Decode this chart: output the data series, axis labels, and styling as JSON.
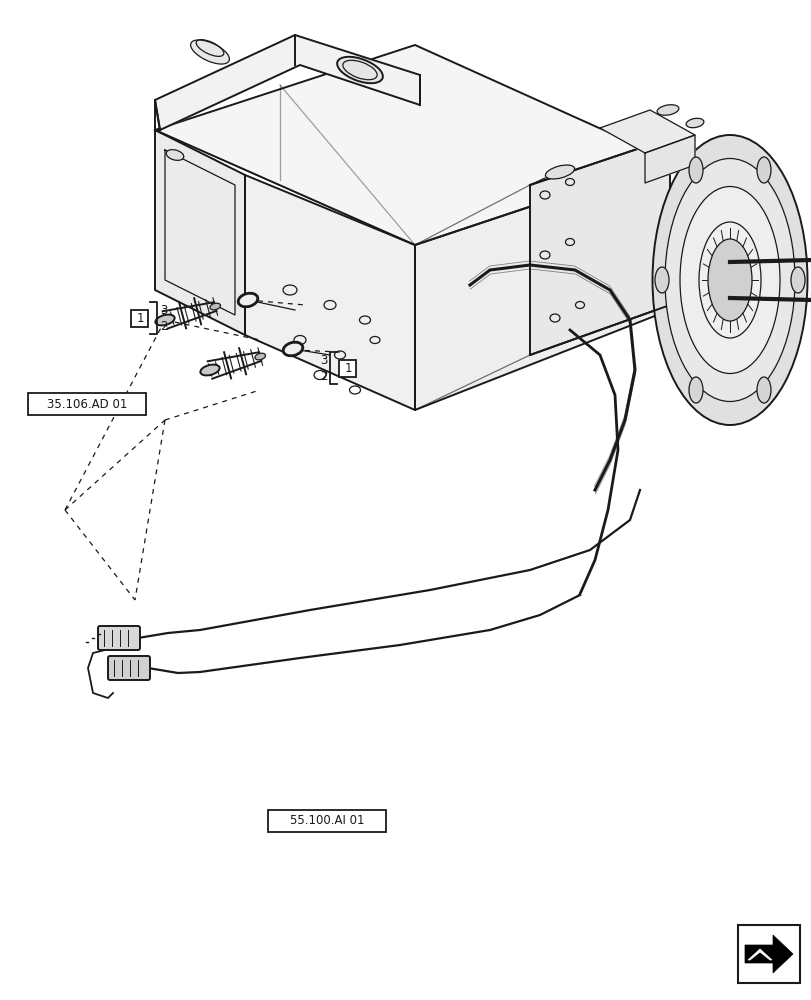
{
  "bg_color": "#ffffff",
  "line_color": "#1a1a1a",
  "label_box_1": "35.106.AD 01",
  "label_box_2": "55.100.AI 01",
  "figure_width": 8.12,
  "figure_height": 10.0,
  "dpi": 100
}
